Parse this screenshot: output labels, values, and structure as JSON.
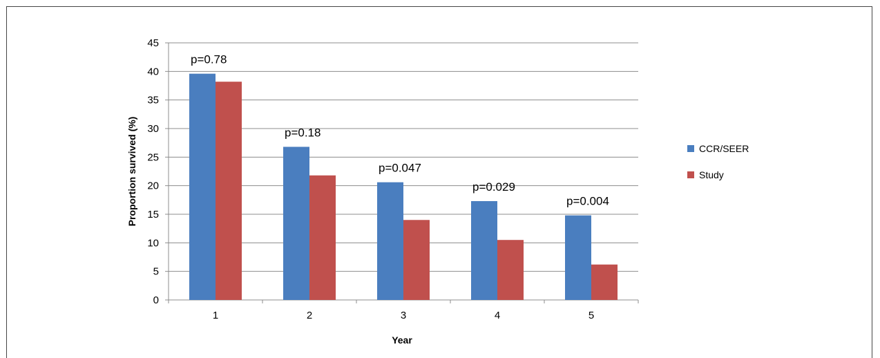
{
  "chart_data": {
    "type": "bar",
    "title": "",
    "xlabel": "Year",
    "ylabel": "Proportion survived (%)",
    "categories": [
      "1",
      "2",
      "3",
      "4",
      "5"
    ],
    "ylim": [
      0,
      45
    ],
    "yticks": [
      0,
      5,
      10,
      15,
      20,
      25,
      30,
      35,
      40,
      45
    ],
    "grid": true,
    "legend_position": "right",
    "series": [
      {
        "name": "CCR/SEER",
        "color": "#4a7ebf",
        "values": [
          39.6,
          26.8,
          20.6,
          17.3,
          14.8
        ]
      },
      {
        "name": "Study",
        "color": "#c0504d",
        "values": [
          38.2,
          21.8,
          14.0,
          10.5,
          6.2
        ]
      }
    ],
    "annotations": [
      "p=0.78",
      "p=0.18",
      "p=0.047",
      "p=0.029",
      "p=0.004"
    ]
  }
}
